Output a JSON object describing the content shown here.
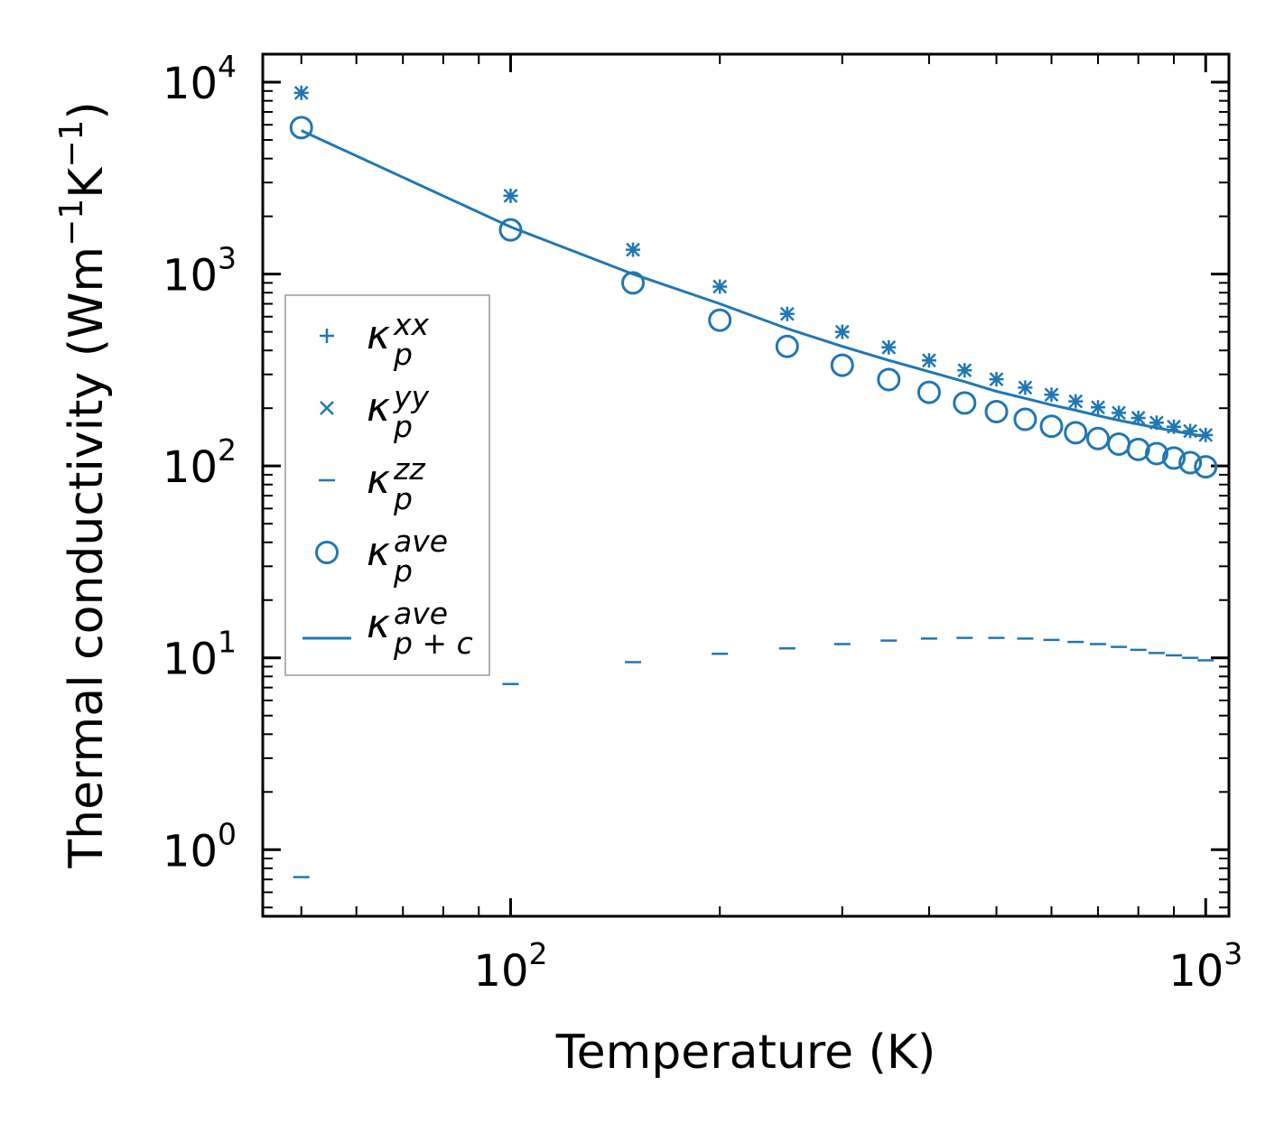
{
  "chart_data": {
    "type": "scatter",
    "title": "",
    "xlabel": "Temperature (K)",
    "ylabel": {
      "main": "Thermal conductivity (Wm",
      "exp1": "−1",
      "mid": "K",
      "exp2": "−1",
      "end": ")"
    },
    "xscale": "log",
    "yscale": "log",
    "xlim": [
      44,
      1080
    ],
    "ylim": [
      0.45,
      14000
    ],
    "xticks": [
      {
        "base": "10",
        "exp": "2",
        "value": 100
      },
      {
        "base": "10",
        "exp": "3",
        "value": 1000
      }
    ],
    "yticks": [
      {
        "base": "10",
        "exp": "0",
        "value": 1
      },
      {
        "base": "10",
        "exp": "1",
        "value": 10
      },
      {
        "base": "10",
        "exp": "2",
        "value": 100
      },
      {
        "base": "10",
        "exp": "3",
        "value": 1000
      },
      {
        "base": "10",
        "exp": "4",
        "value": 10000
      }
    ],
    "legend_position": "center-left",
    "color": "#1f77b4",
    "series": [
      {
        "name": "κ_p^xx",
        "legend": {
          "base": "κ",
          "sub": "p",
          "sup": "xx"
        },
        "marker": "plus",
        "x": [
          50,
          100,
          150,
          200,
          250,
          300,
          350,
          400,
          450,
          500,
          550,
          600,
          650,
          700,
          750,
          800,
          850,
          900,
          950,
          1000
        ],
        "y": [
          8800,
          2560,
          1340,
          860,
          620,
          500,
          415,
          355,
          315,
          283,
          256,
          235,
          217,
          202,
          189,
          178,
          168,
          160,
          152,
          145
        ]
      },
      {
        "name": "κ_p^yy",
        "legend": {
          "base": "κ",
          "sub": "p",
          "sup": "yy"
        },
        "marker": "x",
        "x": [
          50,
          100,
          150,
          200,
          250,
          300,
          350,
          400,
          450,
          500,
          550,
          600,
          650,
          700,
          750,
          800,
          850,
          900,
          950,
          1000
        ],
        "y": [
          8800,
          2560,
          1340,
          860,
          620,
          500,
          415,
          355,
          315,
          283,
          256,
          235,
          217,
          202,
          189,
          178,
          168,
          160,
          152,
          145
        ]
      },
      {
        "name": "κ_p^zz",
        "legend": {
          "base": "κ",
          "sub": "p",
          "sup": "zz"
        },
        "marker": "hline",
        "x": [
          50,
          100,
          150,
          200,
          250,
          300,
          350,
          400,
          450,
          500,
          550,
          600,
          650,
          700,
          750,
          800,
          850,
          900,
          950,
          1000
        ],
        "y": [
          0.72,
          7.3,
          9.5,
          10.5,
          11.2,
          11.8,
          12.3,
          12.6,
          12.7,
          12.7,
          12.6,
          12.4,
          12.1,
          11.8,
          11.4,
          11.0,
          10.6,
          10.3,
          10.0,
          9.7
        ]
      },
      {
        "name": "κ_p^ave",
        "legend": {
          "base": "κ",
          "sub": "p",
          "sup": "ave"
        },
        "marker": "circle",
        "x": [
          50,
          100,
          150,
          200,
          250,
          300,
          350,
          400,
          450,
          500,
          550,
          600,
          650,
          700,
          750,
          800,
          850,
          900,
          950,
          1000
        ],
        "y": [
          5800,
          1700,
          900,
          575,
          420,
          335,
          282,
          242,
          213,
          192,
          175,
          161,
          149,
          139,
          130,
          122,
          116,
          110,
          104,
          99
        ]
      },
      {
        "name": "κ_{p+c}^ave",
        "legend": {
          "base": "κ",
          "sub": "p + c",
          "sup": "ave"
        },
        "marker": "line",
        "x": [
          50,
          100,
          150,
          200,
          250,
          300,
          350,
          400,
          450,
          500,
          550,
          600,
          650,
          700,
          750,
          800,
          850,
          900,
          950,
          1000
        ],
        "y": [
          5600,
          1760,
          1000,
          700,
          520,
          420,
          355,
          310,
          275,
          245,
          225,
          208,
          195,
          183,
          173,
          165,
          158,
          152,
          147,
          142
        ]
      }
    ]
  }
}
